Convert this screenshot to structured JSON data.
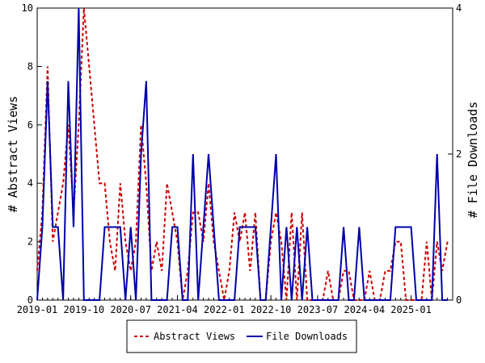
{
  "chart_data": {
    "type": "line",
    "title": "",
    "ylabel_left": "# Abstract Views",
    "ylabel_right": "# File Downloads",
    "ylim_left": [
      0,
      10
    ],
    "ylim_right": [
      0,
      4
    ],
    "yticks_left": [
      "0",
      "2",
      "4",
      "6",
      "8",
      "10"
    ],
    "yticks_right": [
      "0",
      "2",
      "4"
    ],
    "xlim": [
      "2019-01",
      "2025-09"
    ],
    "xticks": [
      "2019-01",
      "2019-10",
      "2020-07",
      "2021-04",
      "2022-01",
      "2022-10",
      "2023-07",
      "2024-04",
      "2025-01"
    ],
    "legend_position": "bottom-center",
    "colors": {
      "abstract_views": "#cc0000",
      "file_downloads": "#0000aa"
    },
    "series": [
      {
        "name": "Abstract Views",
        "axis": "left",
        "style": "dashed",
        "points": [
          [
            "2019-01",
            1
          ],
          [
            "2019-02",
            3
          ],
          [
            "2019-03",
            8
          ],
          [
            "2019-04",
            2
          ],
          [
            "2019-05",
            3
          ],
          [
            "2019-06",
            4
          ],
          [
            "2019-07",
            6
          ],
          [
            "2019-08",
            3
          ],
          [
            "2019-09",
            6
          ],
          [
            "2019-10",
            10
          ],
          [
            "2019-11",
            8
          ],
          [
            "2019-12",
            6
          ],
          [
            "2020-01",
            4
          ],
          [
            "2020-02",
            4
          ],
          [
            "2020-03",
            2
          ],
          [
            "2020-04",
            1
          ],
          [
            "2020-05",
            4
          ],
          [
            "2020-06",
            2
          ],
          [
            "2020-07",
            1
          ],
          [
            "2020-08",
            2
          ],
          [
            "2020-09",
            6
          ],
          [
            "2020-10",
            4
          ],
          [
            "2020-11",
            1
          ],
          [
            "2020-12",
            2
          ],
          [
            "2021-01",
            1
          ],
          [
            "2021-02",
            4
          ],
          [
            "2021-03",
            3
          ],
          [
            "2021-04",
            2
          ],
          [
            "2021-05",
            0
          ],
          [
            "2021-06",
            1
          ],
          [
            "2021-07",
            3
          ],
          [
            "2021-08",
            3
          ],
          [
            "2021-09",
            2
          ],
          [
            "2021-10",
            4
          ],
          [
            "2021-11",
            2
          ],
          [
            "2021-12",
            1
          ],
          [
            "2022-01",
            0
          ],
          [
            "2022-02",
            1
          ],
          [
            "2022-03",
            3
          ],
          [
            "2022-04",
            2
          ],
          [
            "2022-05",
            3
          ],
          [
            "2022-06",
            1
          ],
          [
            "2022-07",
            3
          ],
          [
            "2022-08",
            0
          ],
          [
            "2022-09",
            0
          ],
          [
            "2022-10",
            2
          ],
          [
            "2022-11",
            3
          ],
          [
            "2022-12",
            2
          ],
          [
            "2023-01",
            0
          ],
          [
            "2023-02",
            3
          ],
          [
            "2023-03",
            0
          ],
          [
            "2023-04",
            3
          ],
          [
            "2023-05",
            0
          ],
          [
            "2023-06",
            0
          ],
          [
            "2023-07",
            0
          ],
          [
            "2023-08",
            0
          ],
          [
            "2023-09",
            1
          ],
          [
            "2023-10",
            0
          ],
          [
            "2023-11",
            0
          ],
          [
            "2023-12",
            1
          ],
          [
            "2024-01",
            1
          ],
          [
            "2024-02",
            0
          ],
          [
            "2024-03",
            0
          ],
          [
            "2024-04",
            0
          ],
          [
            "2024-05",
            1
          ],
          [
            "2024-06",
            0
          ],
          [
            "2024-07",
            0
          ],
          [
            "2024-08",
            1
          ],
          [
            "2024-09",
            1
          ],
          [
            "2024-10",
            2
          ],
          [
            "2024-11",
            2
          ],
          [
            "2024-12",
            0
          ],
          [
            "2025-01",
            0
          ],
          [
            "2025-02",
            0
          ],
          [
            "2025-03",
            0
          ],
          [
            "2025-04",
            2
          ],
          [
            "2025-05",
            0
          ],
          [
            "2025-06",
            2
          ],
          [
            "2025-07",
            1
          ],
          [
            "2025-08",
            2
          ]
        ]
      },
      {
        "name": "File Downloads",
        "axis": "right",
        "style": "solid",
        "points": [
          [
            "2019-01",
            0
          ],
          [
            "2019-02",
            1
          ],
          [
            "2019-03",
            3
          ],
          [
            "2019-04",
            1
          ],
          [
            "2019-05",
            1
          ],
          [
            "2019-06",
            0
          ],
          [
            "2019-07",
            3
          ],
          [
            "2019-08",
            1
          ],
          [
            "2019-09",
            4
          ],
          [
            "2019-10",
            0
          ],
          [
            "2019-11",
            0
          ],
          [
            "2019-12",
            0
          ],
          [
            "2020-01",
            0
          ],
          [
            "2020-02",
            1
          ],
          [
            "2020-03",
            1
          ],
          [
            "2020-04",
            1
          ],
          [
            "2020-05",
            1
          ],
          [
            "2020-06",
            0
          ],
          [
            "2020-07",
            1
          ],
          [
            "2020-08",
            0
          ],
          [
            "2020-09",
            2
          ],
          [
            "2020-10",
            3
          ],
          [
            "2020-11",
            0
          ],
          [
            "2020-12",
            0
          ],
          [
            "2021-01",
            0
          ],
          [
            "2021-02",
            0
          ],
          [
            "2021-03",
            1
          ],
          [
            "2021-04",
            1
          ],
          [
            "2021-05",
            0
          ],
          [
            "2021-06",
            0
          ],
          [
            "2021-07",
            2
          ],
          [
            "2021-08",
            0
          ],
          [
            "2021-09",
            1
          ],
          [
            "2021-10",
            2
          ],
          [
            "2021-11",
            1
          ],
          [
            "2021-12",
            0
          ],
          [
            "2022-01",
            0
          ],
          [
            "2022-02",
            0
          ],
          [
            "2022-03",
            0
          ],
          [
            "2022-04",
            1
          ],
          [
            "2022-05",
            1
          ],
          [
            "2022-06",
            1
          ],
          [
            "2022-07",
            1
          ],
          [
            "2022-08",
            0
          ],
          [
            "2022-09",
            0
          ],
          [
            "2022-10",
            1
          ],
          [
            "2022-11",
            2
          ],
          [
            "2022-12",
            0
          ],
          [
            "2023-01",
            1
          ],
          [
            "2023-02",
            0
          ],
          [
            "2023-03",
            1
          ],
          [
            "2023-04",
            0
          ],
          [
            "2023-05",
            1
          ],
          [
            "2023-06",
            0
          ],
          [
            "2023-07",
            0
          ],
          [
            "2023-08",
            0
          ],
          [
            "2023-09",
            0
          ],
          [
            "2023-10",
            0
          ],
          [
            "2023-11",
            0
          ],
          [
            "2023-12",
            1
          ],
          [
            "2024-01",
            0
          ],
          [
            "2024-02",
            0
          ],
          [
            "2024-03",
            1
          ],
          [
            "2024-04",
            0
          ],
          [
            "2024-05",
            0
          ],
          [
            "2024-06",
            0
          ],
          [
            "2024-07",
            0
          ],
          [
            "2024-08",
            0
          ],
          [
            "2024-09",
            0
          ],
          [
            "2024-10",
            1
          ],
          [
            "2024-11",
            1
          ],
          [
            "2024-12",
            1
          ],
          [
            "2025-01",
            1
          ],
          [
            "2025-02",
            0
          ],
          [
            "2025-03",
            0
          ],
          [
            "2025-04",
            0
          ],
          [
            "2025-05",
            0
          ],
          [
            "2025-06",
            2
          ],
          [
            "2025-07",
            0
          ],
          [
            "2025-08",
            0
          ]
        ]
      }
    ]
  }
}
